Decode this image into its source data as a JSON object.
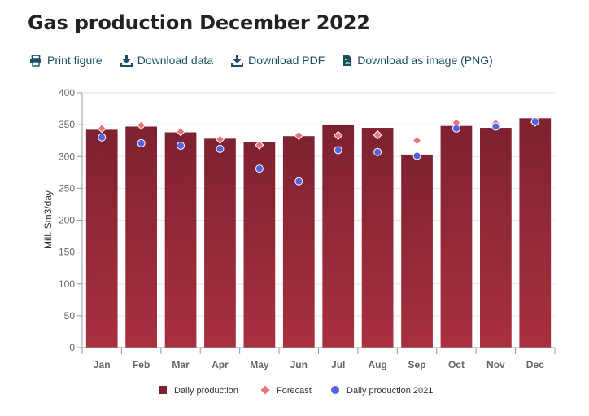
{
  "page": {
    "title": "Gas production December 2022"
  },
  "toolbar": [
    {
      "label": "Print figure",
      "icon": "print-icon"
    },
    {
      "label": "Download data",
      "icon": "download-icon"
    },
    {
      "label": "Download PDF",
      "icon": "download-icon"
    },
    {
      "label": "Download as image (PNG)",
      "icon": "image-file-icon"
    }
  ],
  "colors": {
    "bar_top": "#7e2130",
    "bar_bottom": "#a8303f",
    "forecast": "#e8737b",
    "daily_2021": "#5561e0",
    "link": "#1b4f63",
    "grid": "#e6e6e6"
  },
  "chart_data": {
    "type": "bar",
    "title": "",
    "xlabel": "",
    "ylabel": "Mill. Sm3/day",
    "ylim": [
      0,
      400
    ],
    "yticks": [
      0,
      50,
      100,
      150,
      200,
      250,
      300,
      350,
      400
    ],
    "grid": true,
    "legend_position": "bottom",
    "categories": [
      "Jan",
      "Feb",
      "Mar",
      "Apr",
      "May",
      "Jun",
      "Jul",
      "Aug",
      "Sep",
      "Oct",
      "Nov",
      "Dec"
    ],
    "series": [
      {
        "name": "Daily production",
        "type": "bar",
        "values": [
          342,
          347,
          338,
          328,
          323,
          332,
          350,
          345,
          303,
          348,
          345,
          360
        ]
      },
      {
        "name": "Forecast",
        "type": "diamond",
        "values": [
          344,
          349,
          339,
          327,
          318,
          333,
          333,
          334,
          325,
          353,
          352,
          354
        ]
      },
      {
        "name": "Daily production 2021",
        "type": "dot",
        "values": [
          330,
          321,
          317,
          312,
          281,
          261,
          310,
          307,
          301,
          344,
          347,
          355
        ]
      }
    ]
  }
}
